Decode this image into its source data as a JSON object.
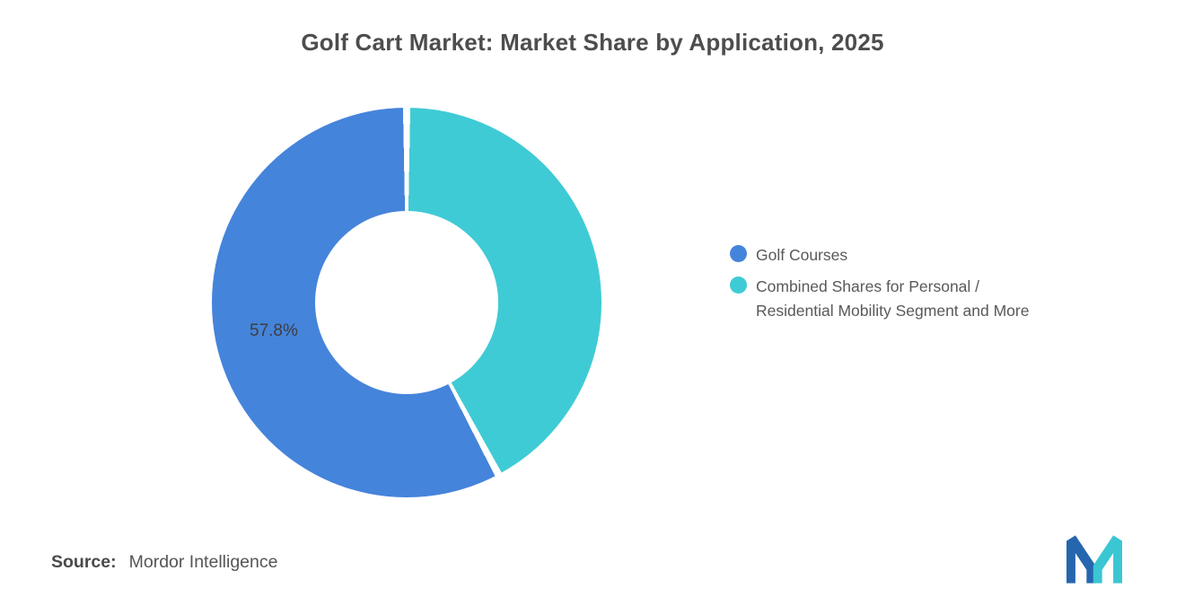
{
  "title": "Golf Cart Market: Market Share by Application, 2025",
  "chart_data": {
    "type": "pie",
    "donut": true,
    "title": "Golf Cart Market: Market Share by Application, 2025",
    "categories": [
      "Golf Courses",
      "Combined Shares for Personal / Residential Mobility Segment and More"
    ],
    "values": [
      57.8,
      42.2
    ],
    "colors": [
      "#4584DB",
      "#3FCBD5"
    ],
    "clockwise_order": [
      1,
      0
    ],
    "start_angle_deg": 0,
    "slice_label": "57.8%",
    "legend_position": "right",
    "grid": false
  },
  "legend": {
    "items": [
      {
        "label": "Golf Courses",
        "color": "#4584DB"
      },
      {
        "label": "Combined Shares for Personal /\nResidential Mobility Segment and More",
        "color": "#3FCBD5"
      }
    ]
  },
  "footer": {
    "source_label": "Source:",
    "source_value": "Mordor Intelligence"
  },
  "logo": {
    "name": "mordor-intelligence-logo",
    "color_primary": "#2566AF",
    "color_accent": "#3BC6D4"
  }
}
